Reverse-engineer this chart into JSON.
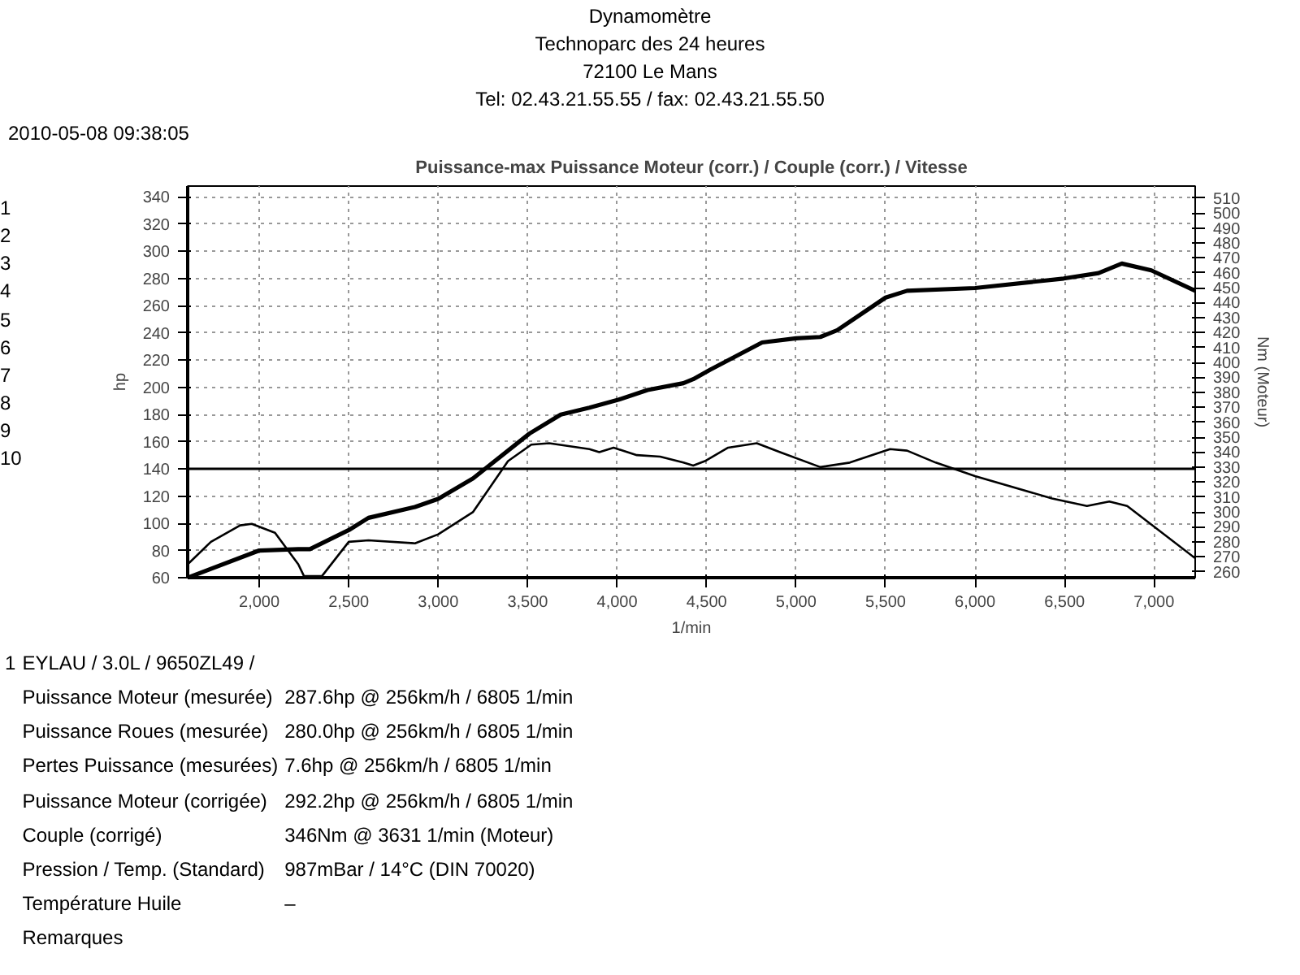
{
  "chart_data": {
    "type": "line",
    "title": "Puissance-max Puissance Moteur (corr.) / Couple (corr.) / Vitesse",
    "xlabel": "1/min",
    "ylabel": "hp",
    "y2label": "Nm (Moteur)",
    "xlim": [
      1600,
      7230
    ],
    "ylim": [
      60,
      348
    ],
    "y2lim": [
      256,
      518
    ],
    "xticks": [
      {
        "value": 2000,
        "label": "2,000"
      },
      {
        "value": 2500,
        "label": "2,500"
      },
      {
        "value": 3000,
        "label": "3,000"
      },
      {
        "value": 3500,
        "label": "3,500"
      },
      {
        "value": 4000,
        "label": "4,000"
      },
      {
        "value": 4500,
        "label": "4,500"
      },
      {
        "value": 5000,
        "label": "5,000"
      },
      {
        "value": 5500,
        "label": "5,500"
      },
      {
        "value": 6000,
        "label": "6,000"
      },
      {
        "value": 6500,
        "label": "6,500"
      },
      {
        "value": 7000,
        "label": "7,000"
      }
    ],
    "yticks": [
      60,
      80,
      100,
      120,
      140,
      160,
      180,
      200,
      220,
      240,
      260,
      280,
      300,
      320,
      340
    ],
    "y2ticks": [
      260,
      270,
      280,
      290,
      300,
      310,
      320,
      330,
      340,
      350,
      360,
      370,
      380,
      390,
      400,
      410,
      420,
      430,
      440,
      450,
      460,
      470,
      480,
      490,
      500,
      510
    ],
    "grid": true,
    "line_style": "solid",
    "marker": "none",
    "series": [
      {
        "color": "#000000",
        "x": [
          1600,
          2000,
          2218,
          2283,
          2500,
          2610,
          2870,
          3000,
          3195,
          3510,
          3685,
          3845,
          4010,
          4170,
          4370,
          4425,
          4520,
          4810,
          5000,
          5135,
          5230,
          5500,
          5620,
          6000,
          6495,
          6690,
          6820,
          6985,
          7230
        ],
        "values": [
          60,
          80,
          81,
          81,
          95,
          104,
          112,
          118,
          133,
          166,
          180,
          185,
          191,
          198,
          203,
          206,
          213,
          233,
          236,
          237,
          242,
          266,
          271,
          273,
          280,
          284,
          291,
          286,
          271
        ]
      },
      {
        "color": "#000000",
        "axis": "y2",
        "x": [
          1600,
          1730,
          1893,
          1958,
          2088,
          2218,
          2250,
          2350,
          2500,
          2610,
          2870,
          3000,
          3195,
          3390,
          3520,
          3620,
          3845,
          3900,
          3980,
          4110,
          4240,
          4370,
          4425,
          4490,
          4620,
          4780,
          4910,
          5135,
          5300,
          5525,
          5620,
          5780,
          6000,
          6430,
          6625,
          6750,
          6850,
          7230
        ],
        "values": [
          265,
          280,
          291,
          292,
          286,
          265,
          257,
          257,
          280,
          281,
          279,
          285,
          300,
          334,
          345,
          346,
          342,
          340,
          343,
          338,
          337,
          333,
          331,
          334,
          343,
          346,
          340,
          330,
          333,
          342,
          341,
          333,
          324,
          309,
          304,
          307,
          304,
          269
        ]
      }
    ],
    "ref_lines": [
      {
        "axis": "y",
        "value": 140,
        "color": "#000000"
      }
    ],
    "annotations": [
      "Dynamomètre",
      "Technoparc des 24 heures",
      "72100 Le Mans",
      "Tel: 02.43.21.55.55 / fax: 02.43.21.55.50",
      "2010-05-08 09:38:05",
      "1",
      "2",
      "3",
      "4",
      "5",
      "6",
      "7",
      "8",
      "9",
      "10",
      "1",
      "EYLAU / 3.0L / 9650ZL49 /",
      "Puissance Moteur (mesurée)",
      "287.6hp @ 256km/h / 6805 1/min",
      "Puissance Roues (mesurée)",
      "280.0hp @ 256km/h / 6805 1/min",
      "Pertes Puissance (mesurées)",
      "7.6hp @ 256km/h / 6805 1/min",
      "Puissance Moteur (corrigée)",
      "292.2hp @ 256km/h / 6805 1/min",
      "Couple (corrigé)",
      "346Nm @ 3631 1/min (Moteur)",
      "Pression / Temp. (Standard)",
      "987mBar / 14°C    (DIN 70020)",
      "Température Huile",
      "–",
      "Remarques"
    ]
  }
}
